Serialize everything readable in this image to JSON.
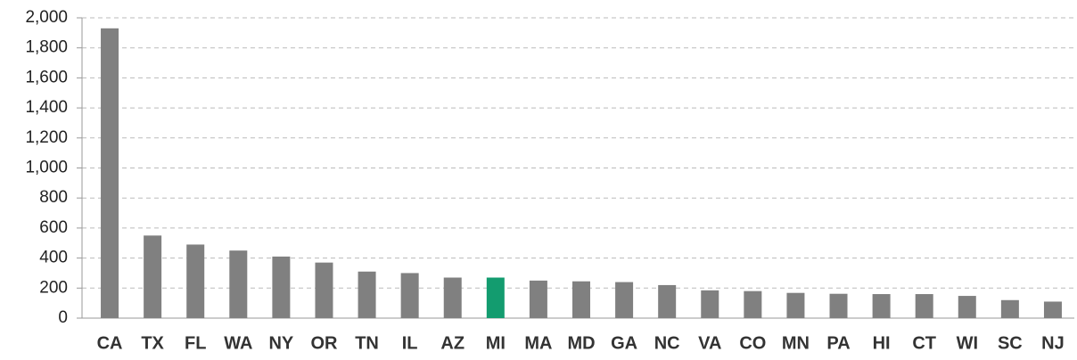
{
  "chart_data": {
    "type": "bar",
    "categories": [
      "CA",
      "TX",
      "FL",
      "WA",
      "NY",
      "OR",
      "TN",
      "IL",
      "AZ",
      "MI",
      "MA",
      "MD",
      "GA",
      "NC",
      "VA",
      "CO",
      "MN",
      "PA",
      "HI",
      "CT",
      "WI",
      "SC",
      "NJ"
    ],
    "values": [
      1930,
      550,
      490,
      450,
      410,
      370,
      310,
      300,
      270,
      270,
      250,
      245,
      240,
      220,
      185,
      180,
      168,
      162,
      160,
      160,
      148,
      120,
      110
    ],
    "colors": [
      "#808080",
      "#808080",
      "#808080",
      "#808080",
      "#808080",
      "#808080",
      "#808080",
      "#808080",
      "#808080",
      "#139c6f",
      "#808080",
      "#808080",
      "#808080",
      "#808080",
      "#808080",
      "#808080",
      "#808080",
      "#808080",
      "#808080",
      "#808080",
      "#808080",
      "#808080",
      "#808080"
    ],
    "ylim": [
      0,
      2000
    ],
    "yticks": [
      0,
      200,
      400,
      600,
      800,
      {
        "value": 1000,
        "label": "1,000"
      },
      {
        "value": 1200,
        "label": "1,200"
      },
      {
        "value": 1400,
        "label": "1,400"
      },
      {
        "value": 1600,
        "label": "1,600"
      },
      {
        "value": 1800,
        "label": "1,800"
      },
      {
        "value": 2000,
        "label": "2,000"
      }
    ],
    "grid": true
  }
}
